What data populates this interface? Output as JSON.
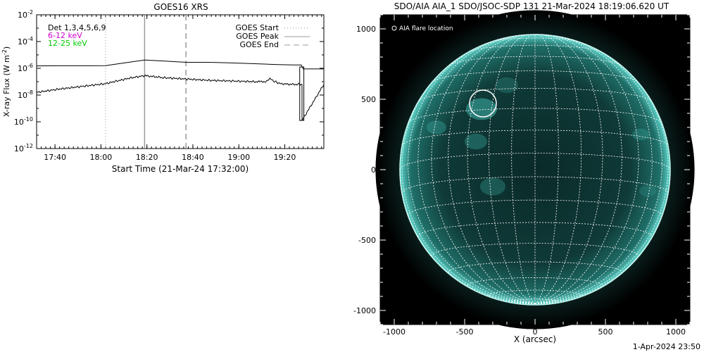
{
  "footer_timestamp": "1-Apr-2024 23:50",
  "chart_data": [
    {
      "type": "line",
      "title": "GOES16 XRS",
      "xlabel": "Start Time (21-Mar-24 17:32:00)",
      "ylabel": "X-ray Flux (W m",
      "ylabel_sup": "-2",
      "ylabel_close": ")",
      "y_scale": "log",
      "ylim": [
        1e-12,
        0.01
      ],
      "yticks": [
        {
          "v": -2,
          "base": "10",
          "exp": "-2"
        },
        {
          "v": -4,
          "base": "10",
          "exp": "-4"
        },
        {
          "v": -6,
          "base": "10",
          "exp": "-6"
        },
        {
          "v": -8,
          "base": "10",
          "exp": "-8"
        },
        {
          "v": -10,
          "base": "10",
          "exp": "-10"
        },
        {
          "v": -12,
          "base": "10",
          "exp": "-12"
        }
      ],
      "xlim_minutes": [
        0,
        125
      ],
      "xticks": [
        {
          "m": 8,
          "label": "17:40"
        },
        {
          "m": 28,
          "label": "18:00"
        },
        {
          "m": 48,
          "label": "18:20"
        },
        {
          "m": 68,
          "label": "18:40"
        },
        {
          "m": 88,
          "label": "19:00"
        },
        {
          "m": 108,
          "label": "19:20"
        }
      ],
      "detector_label": "Det 1,3,4,5,6,9",
      "energy_labels": [
        {
          "text": "6-12 keV",
          "color": "#cc00cc"
        },
        {
          "text": "12-25 keV",
          "color": "#00cc00"
        }
      ],
      "legend": [
        {
          "label": "GOES Start",
          "style": "dotted",
          "color": "#999999"
        },
        {
          "label": "GOES Peak",
          "style": "solid",
          "color": "#999999"
        },
        {
          "label": "GOES End",
          "style": "dashed",
          "color": "#999999"
        }
      ],
      "event_times_minutes": {
        "start": 30,
        "peak": 47,
        "end": 65
      },
      "series": [
        {
          "log_x": [
            0,
            10,
            20,
            30,
            40,
            47,
            55,
            65,
            75,
            85,
            95,
            105,
            112,
            114,
            115.2,
            116,
            120,
            125
          ],
          "log_y": [
            -5.82,
            -5.81,
            -5.81,
            -5.8,
            -5.55,
            -5.38,
            -5.45,
            -5.55,
            -5.55,
            -5.6,
            -5.66,
            -5.72,
            -5.75,
            -5.75,
            -5.75,
            -6.05,
            -6.05,
            -6.05
          ],
          "color": "#000000"
        },
        {
          "log_x": [
            0,
            10,
            20,
            30,
            40,
            47,
            55,
            65,
            75,
            85,
            95,
            100,
            101.5,
            103,
            106,
            110,
            114,
            115.5,
            115.5,
            125
          ],
          "log_y": [
            -7.8,
            -7.55,
            -7.35,
            -7.15,
            -6.75,
            -6.55,
            -6.7,
            -6.8,
            -6.9,
            -6.95,
            -7.0,
            -7.0,
            -6.75,
            -6.95,
            -7.15,
            -7.2,
            -7.2,
            -7.2,
            -9.9,
            -7.2
          ],
          "color": "#000000"
        }
      ]
    },
    {
      "type": "image",
      "title": "SDO/AIA AIA_1 SDO/JSOC-SDP 131 21-Mar-2024 18:19:06.620 UT",
      "xlabel": "X (arcsec)",
      "ylabel": "",
      "xlim": [
        -1100,
        1100
      ],
      "ylim": [
        -1100,
        1100
      ],
      "xticks": [
        "-1000",
        "-500",
        "0",
        "500",
        "1000"
      ],
      "yticks": [
        "1000",
        "500",
        "0",
        "-500",
        "-1000"
      ],
      "xtick_values": [
        -1000,
        -500,
        0,
        500,
        1000
      ],
      "ytick_values": [
        1000,
        500,
        0,
        -500,
        -1000
      ],
      "legend_label": "AIA flare location",
      "flare_location_arcsec": [
        -370,
        470
      ],
      "solar_radius_arcsec": 960
    }
  ]
}
